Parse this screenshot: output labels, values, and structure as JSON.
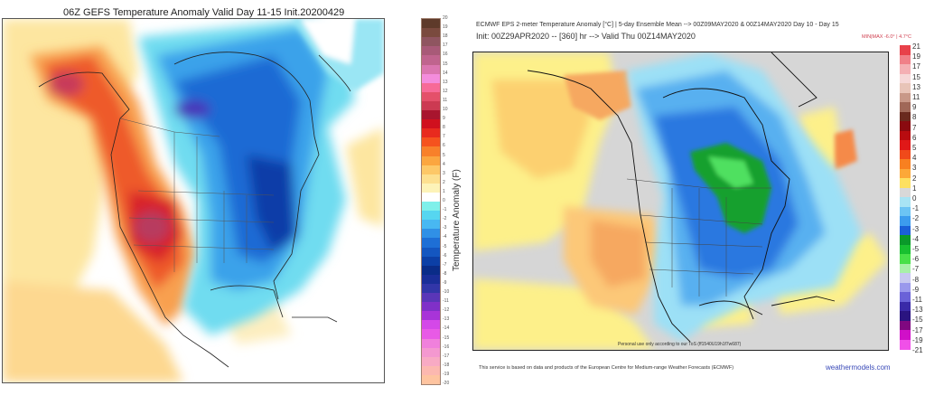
{
  "left_panel": {
    "title": "06Z GEFS Temperature Anomaly Valid Day 11-15 Init.20200429",
    "colorbar": {
      "axis_title": "Temperature Anomaly (F)",
      "ticks": [
        "20",
        "19",
        "18",
        "17",
        "16",
        "15",
        "14",
        "13",
        "12",
        "11",
        "10",
        "9",
        "8",
        "7",
        "6",
        "5",
        "4",
        "3",
        "2",
        "1",
        "0",
        "-1",
        "-2",
        "-3",
        "-4",
        "-5",
        "-6",
        "-7",
        "-8",
        "-9",
        "-10",
        "-11",
        "-12",
        "-13",
        "-14",
        "-15",
        "-16",
        "-17",
        "-18",
        "-19",
        "-20"
      ],
      "colors": [
        "#5e3a2a",
        "#7a4a3e",
        "#8f5560",
        "#a85a78",
        "#c0648e",
        "#db76b0",
        "#f48cdc",
        "#f76a98",
        "#e4506a",
        "#cc3a52",
        "#a8152e",
        "#d0101e",
        "#e82a1e",
        "#f5521e",
        "#f8802a",
        "#fba640",
        "#fdc868",
        "#fde090",
        "#fdf3b8",
        "#ffffff",
        "#7ff0ea",
        "#56d6f0",
        "#48b8f2",
        "#3090e6",
        "#1e6fd6",
        "#1456c0",
        "#0c3fa6",
        "#0a2c88",
        "#1a2e98",
        "#3236a8",
        "#5a36b8",
        "#8030c8",
        "#a834d8",
        "#d448e8",
        "#e85ae6",
        "#f080dc",
        "#f498d0",
        "#f8aac4",
        "#fcb8b0",
        "#fec4a0"
      ]
    },
    "map_description_regions": [
      "warm-west-us",
      "warm-alaska",
      "cold-canada",
      "cold-east-us"
    ]
  },
  "right_panel": {
    "header_line1": "ECMWF EPS 2-meter Temperature Anomaly [°C] | 5-day Ensemble Mean --> 00Z09MAY2020 & 00Z14MAY2020  Day 10 - Day 15",
    "header_line2": "Init: 00Z29APR2020 -- [360] hr --> Valid Thu 00Z14MAY2020",
    "minmax": "MIN|MAX -6.0° | 4.7°C",
    "watermark": "Personal use only according to our ToS (ff1540U19h1f7w687)",
    "footer": "This service is based on data and products of the European Centre for Medium-range Weather Forecasts (ECMWF)",
    "site": "weathermodels.com",
    "colorbar": {
      "ticks": [
        "21",
        "19",
        "17",
        "15",
        "13",
        "11",
        "9",
        "8",
        "7",
        "6",
        "5",
        "4",
        "3",
        "2",
        "1",
        "0",
        "-1",
        "-2",
        "-3",
        "-4",
        "-5",
        "-6",
        "-7",
        "-8",
        "-9",
        "-11",
        "-13",
        "-15",
        "-17",
        "-19",
        "-21"
      ],
      "colors": [
        "#e8414a",
        "#f08088",
        "#f4b0b4",
        "#f6d8d8",
        "#e8c4b8",
        "#c89888",
        "#a06858",
        "#6a2a1e",
        "#8a0a10",
        "#b80c10",
        "#e01818",
        "#f04a1a",
        "#f88020",
        "#fca838",
        "#fde060",
        "#d8d8d8",
        "#a8e4f4",
        "#6cc4f4",
        "#3c9cee",
        "#1a60d8",
        "#0a9a2a",
        "#18c030",
        "#48e048",
        "#a8f0a8",
        "#c8c8f0",
        "#9a98ec",
        "#6a62d8",
        "#3a2aa8",
        "#2a1480",
        "#800880",
        "#d010c8",
        "#f050e8"
      ]
    }
  },
  "colors": {
    "left_background": "#ffffff",
    "right_background": "#d6d6d6",
    "site_link": "#3a4ab8",
    "minmax": "#d04050"
  }
}
